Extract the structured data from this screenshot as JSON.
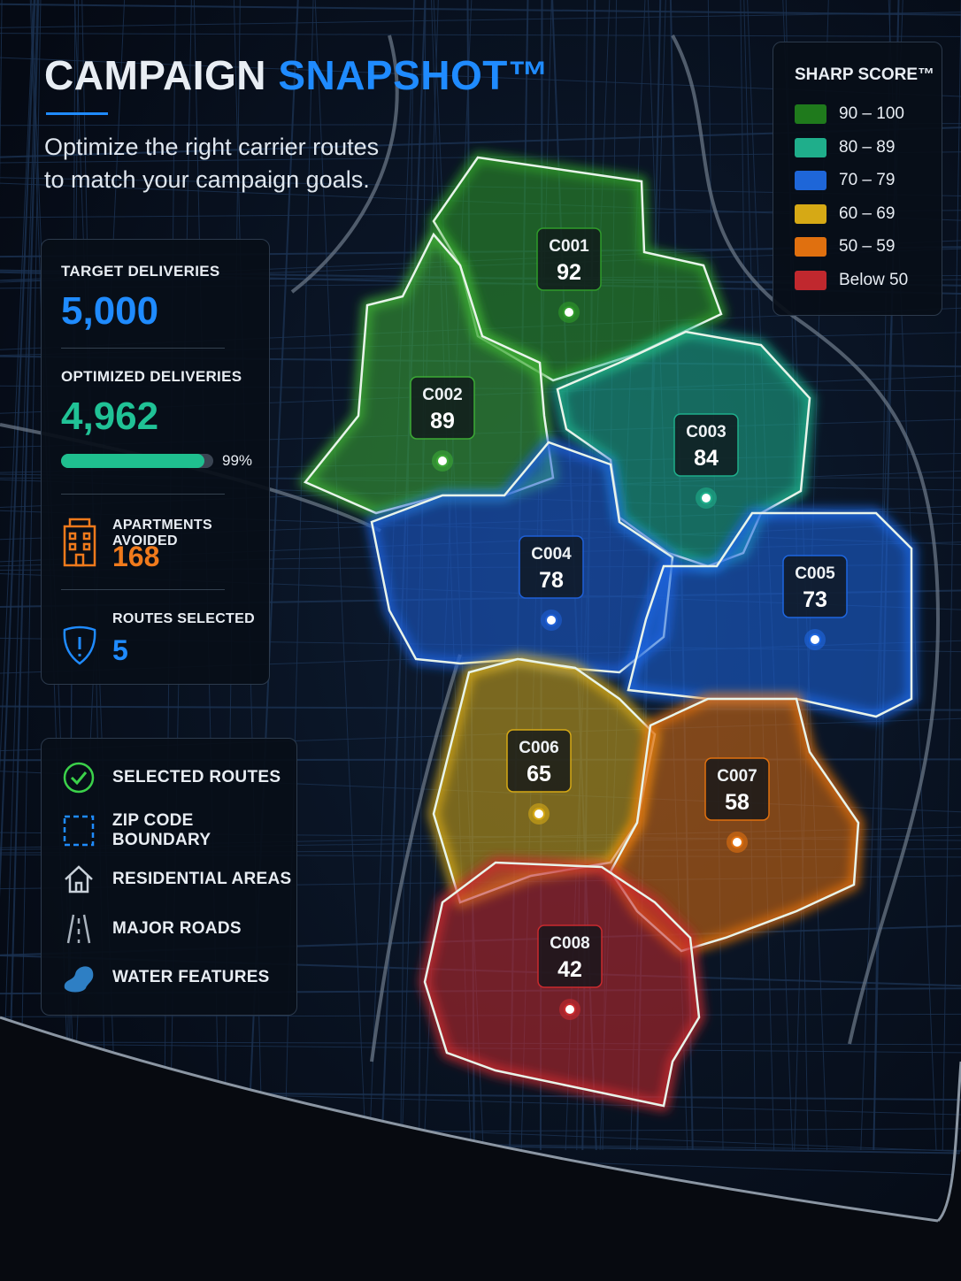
{
  "header": {
    "title": "CAMPAIGN",
    "title_accent": "SNAPSHOT™",
    "subtitle": [
      "Optimize the right carrier routes",
      "to match your campaign goals."
    ]
  },
  "stats": {
    "target": {
      "label": "TARGET DELIVERIES",
      "value": "5,000"
    },
    "optimized": {
      "label": "OPTIMIZED DELIVERIES",
      "value": "4,962",
      "progress": "99%"
    },
    "apartments": {
      "label": "APARTMENTS AVOIDED",
      "value": "168"
    },
    "routes": {
      "label": "ROUTES SELECTED",
      "value": "5"
    }
  },
  "map_key": [
    "SELECTED ROUTES",
    "ZIP CODE BOUNDARY",
    "RESIDENTIAL AREAS",
    "MAJOR ROADS",
    "WATER FEATURES"
  ],
  "score_legend": {
    "title": "SHARP SCORE™",
    "items": [
      {
        "label": "90 – 100",
        "color": "#1f7a1c"
      },
      {
        "label": "80 – 89",
        "color": "#1fae8b"
      },
      {
        "label": "70 – 79",
        "color": "#1e66d8"
      },
      {
        "label": "60 – 69",
        "color": "#d6a915"
      },
      {
        "label": "50 – 59",
        "color": "#e0700f"
      },
      {
        "label": "Below 50",
        "color": "#c0282e"
      }
    ]
  },
  "routes": [
    {
      "id": "C001",
      "score": "92",
      "color": "#2f9b2a"
    },
    {
      "id": "C002",
      "score": "89",
      "color": "#3caa35"
    },
    {
      "id": "C003",
      "score": "84",
      "color": "#1fae8b"
    },
    {
      "id": "C004",
      "score": "78",
      "color": "#1e5fd6"
    },
    {
      "id": "C005",
      "score": "73",
      "color": "#1e66e0"
    },
    {
      "id": "C006",
      "score": "65",
      "color": "#d6a915"
    },
    {
      "id": "C007",
      "score": "58",
      "color": "#e0700f"
    },
    {
      "id": "C008",
      "score": "42",
      "color": "#c92a2e"
    }
  ]
}
